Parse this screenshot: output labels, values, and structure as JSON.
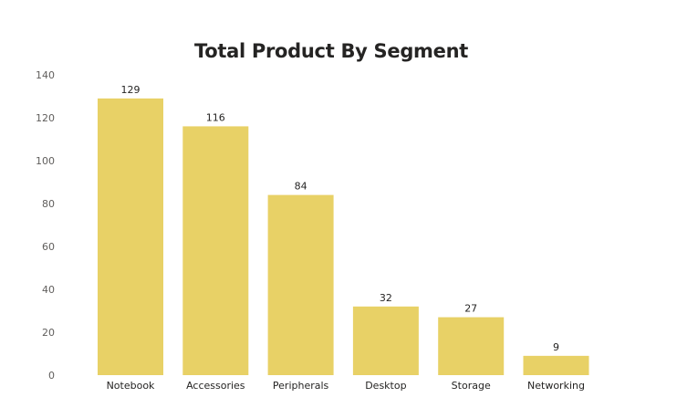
{
  "chart_data": {
    "type": "bar",
    "title": "Total Product By Segment",
    "xlabel": "",
    "ylabel": "",
    "categories": [
      "Notebook",
      "Accessories",
      "Peripherals",
      "Desktop",
      "Storage",
      "Networking"
    ],
    "values": [
      129,
      116,
      84,
      32,
      27,
      9
    ],
    "data_labels": [
      "129",
      "116",
      "84",
      "32",
      "27",
      "9"
    ],
    "ylim": [
      0,
      140
    ],
    "yticks": [
      0,
      20,
      40,
      60,
      80,
      100,
      120,
      140
    ],
    "grid": false,
    "legend": "none",
    "bar_color": "#E8D166"
  }
}
